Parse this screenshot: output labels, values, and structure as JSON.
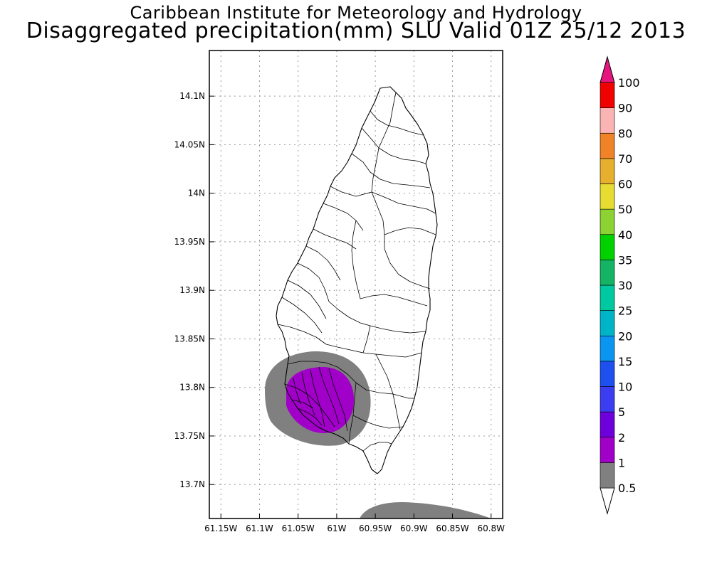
{
  "header": {
    "title": "Caribbean Institute for Meteorology and Hydrology",
    "subtitle": "Disaggregated precipitation(mm) SLU Valid 01Z 25/12 2013"
  },
  "map": {
    "lon_range": [
      -61.165,
      -60.785
    ],
    "lat_range": [
      13.665,
      14.147
    ],
    "lat_ticks": [
      {
        "value": 14.1,
        "label": "14.1N"
      },
      {
        "value": 14.05,
        "label": "14.05N"
      },
      {
        "value": 14.0,
        "label": "14N"
      },
      {
        "value": 13.95,
        "label": "13.95N"
      },
      {
        "value": 13.9,
        "label": "13.9N"
      },
      {
        "value": 13.85,
        "label": "13.85N"
      },
      {
        "value": 13.8,
        "label": "13.8N"
      },
      {
        "value": 13.75,
        "label": "13.75N"
      },
      {
        "value": 13.7,
        "label": "13.7N"
      }
    ],
    "lon_ticks": [
      {
        "value": -61.15,
        "label": "61.15W"
      },
      {
        "value": -61.1,
        "label": "61.1W"
      },
      {
        "value": -61.05,
        "label": "61.05W"
      },
      {
        "value": -61.0,
        "label": "61W"
      },
      {
        "value": -60.95,
        "label": "60.95W"
      },
      {
        "value": -60.9,
        "label": "60.9W"
      },
      {
        "value": -60.85,
        "label": "60.85W"
      },
      {
        "value": -60.8,
        "label": "60.8W"
      }
    ],
    "grid": true
  },
  "colorbar": {
    "levels": [
      "0.5",
      "1",
      "2",
      "5",
      "10",
      "15",
      "20",
      "25",
      "30",
      "35",
      "40",
      "50",
      "60",
      "70",
      "80",
      "90",
      "100"
    ],
    "colors": [
      "#808080",
      "#a000c8",
      "#6e00dc",
      "#3c3cf0",
      "#1e50f0",
      "#0a96f0",
      "#00b4c8",
      "#00c8a0",
      "#14b464",
      "#00d200",
      "#8cd232",
      "#e6dc32",
      "#e6af2d",
      "#f08228",
      "#fab4b4",
      "#f00000",
      "#f03c3c"
    ],
    "under_color": "#ffffff",
    "over_color": "#e6147d"
  },
  "precip_areas": [
    {
      "level": "0.5-1 mm",
      "color": "#808080"
    },
    {
      "level": "1-2 mm",
      "color": "#a000c8"
    }
  ]
}
